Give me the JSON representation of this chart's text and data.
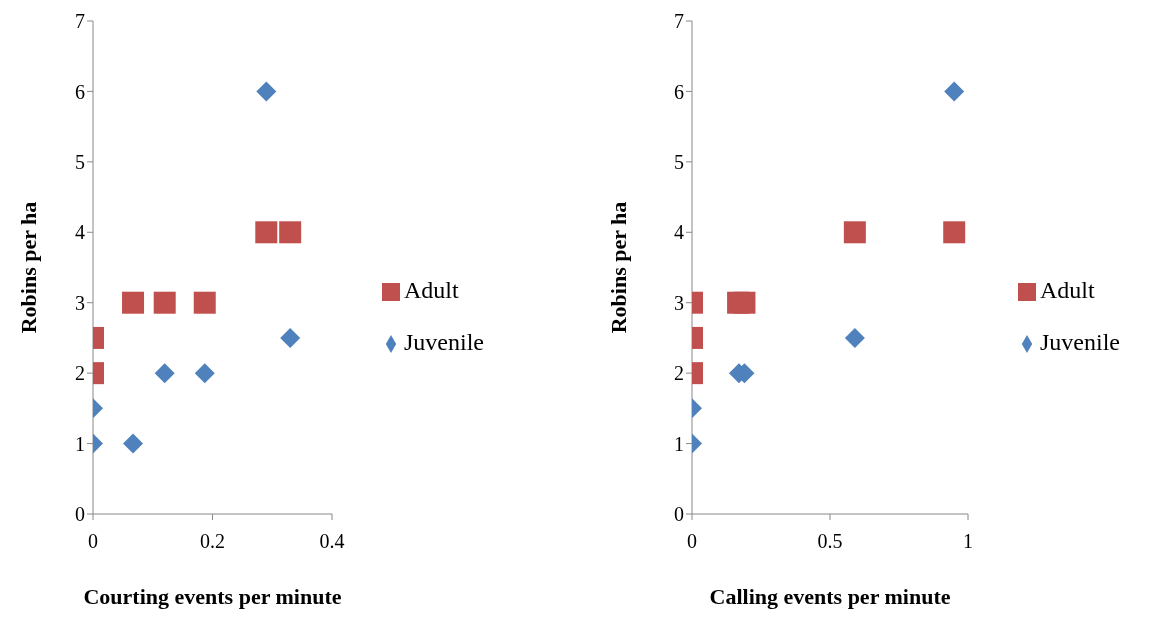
{
  "chart_data": [
    {
      "type": "scatter",
      "xlabel": "Courting  events per minute",
      "ylabel": "Robins per ha",
      "xlim": [
        0,
        0.4
      ],
      "xticks": [
        0,
        0.2,
        0.4
      ],
      "ylim": [
        0,
        7
      ],
      "yticks": [
        0,
        1,
        2,
        3,
        4,
        5,
        6,
        7
      ],
      "grid": false,
      "legend": "right",
      "series": [
        {
          "name": "Adult",
          "color": "#c0504d",
          "marker": "square",
          "x": [
            0,
            0,
            0.067,
            0.12,
            0.187,
            0.29,
            0.33
          ],
          "values": [
            2.5,
            2,
            3,
            3,
            3,
            4,
            4
          ]
        },
        {
          "name": "Juvenile",
          "color": "#4f81bd",
          "marker": "diamond",
          "x": [
            0.29,
            0.33,
            0,
            0,
            0.067,
            0.12,
            0.187
          ],
          "values": [
            6,
            2.5,
            1.5,
            1,
            1,
            2,
            2
          ]
        }
      ]
    },
    {
      "type": "scatter",
      "xlabel": "Calling events per minute",
      "ylabel": "Robins per ha",
      "xlim": [
        0,
        1
      ],
      "xticks": [
        0,
        0.5,
        1
      ],
      "ylim": [
        0,
        7
      ],
      "yticks": [
        0,
        1,
        2,
        3,
        4,
        5,
        6,
        7
      ],
      "grid": false,
      "legend": "right",
      "series": [
        {
          "name": "Adult",
          "color": "#c0504d",
          "marker": "square",
          "x": [
            0,
            0,
            0,
            0.167,
            0.19,
            0.59,
            0.95
          ],
          "values": [
            3,
            2.5,
            2,
            3,
            3,
            4,
            4
          ]
        },
        {
          "name": "Juvenile",
          "color": "#4f81bd",
          "marker": "diamond",
          "x": [
            0.95,
            0.59,
            0.17,
            0.19,
            0,
            0
          ],
          "values": [
            6,
            2.5,
            2,
            2,
            1.5,
            1
          ]
        }
      ]
    }
  ]
}
